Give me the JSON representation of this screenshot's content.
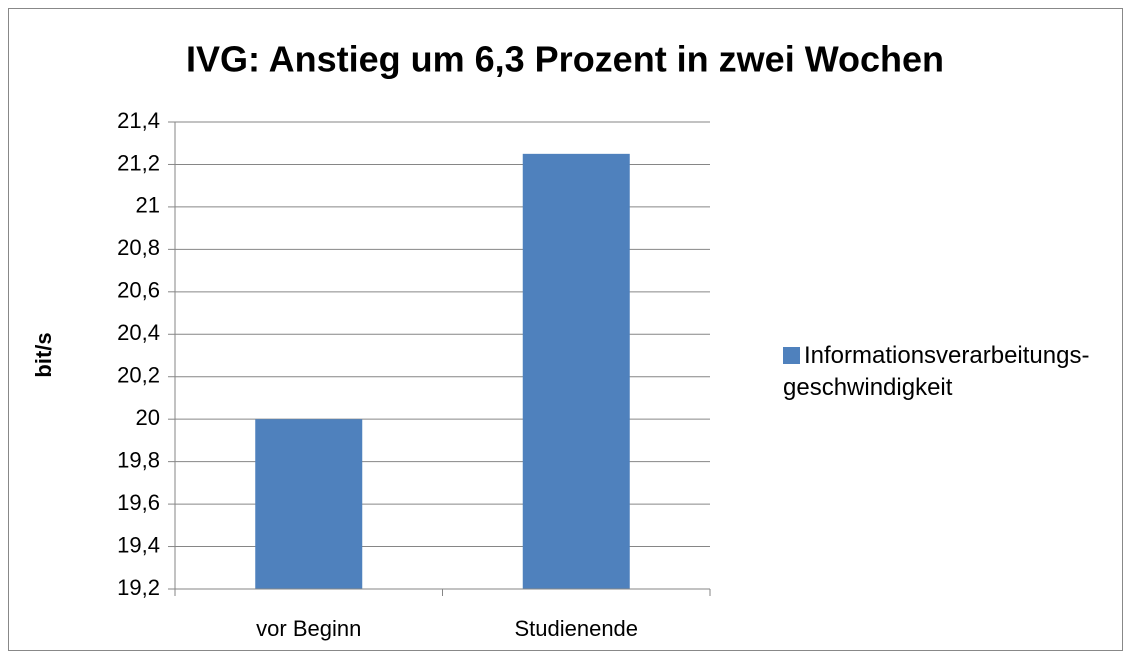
{
  "chart_data": {
    "type": "bar",
    "title": "IVG: Anstieg um 6,3 Prozent in zwei Wochen",
    "y_label": "bit/s",
    "categories": [
      "vor Beginn",
      "Studienende"
    ],
    "series": [
      {
        "name": "Informationsverarbeitungs-geschwindigkeit",
        "color": "#4f81bd",
        "values": [
          20.0,
          21.25
        ]
      }
    ],
    "ylim": [
      19.2,
      21.4
    ],
    "yticks": [
      {
        "value": 19.2,
        "label": "19,2"
      },
      {
        "value": 19.4,
        "label": "19,4"
      },
      {
        "value": 19.6,
        "label": "19,6"
      },
      {
        "value": 19.8,
        "label": "19,8"
      },
      20,
      {
        "value": 20.2,
        "label": "20,2"
      },
      {
        "value": 20.4,
        "label": "20,4"
      },
      {
        "value": 20.6,
        "label": "20,6"
      },
      {
        "value": 20.8,
        "label": "20,8"
      },
      21,
      {
        "value": 21.2,
        "label": "21,2"
      },
      {
        "value": 21.4,
        "label": "21,4"
      }
    ],
    "grid": true,
    "legend": "right"
  }
}
